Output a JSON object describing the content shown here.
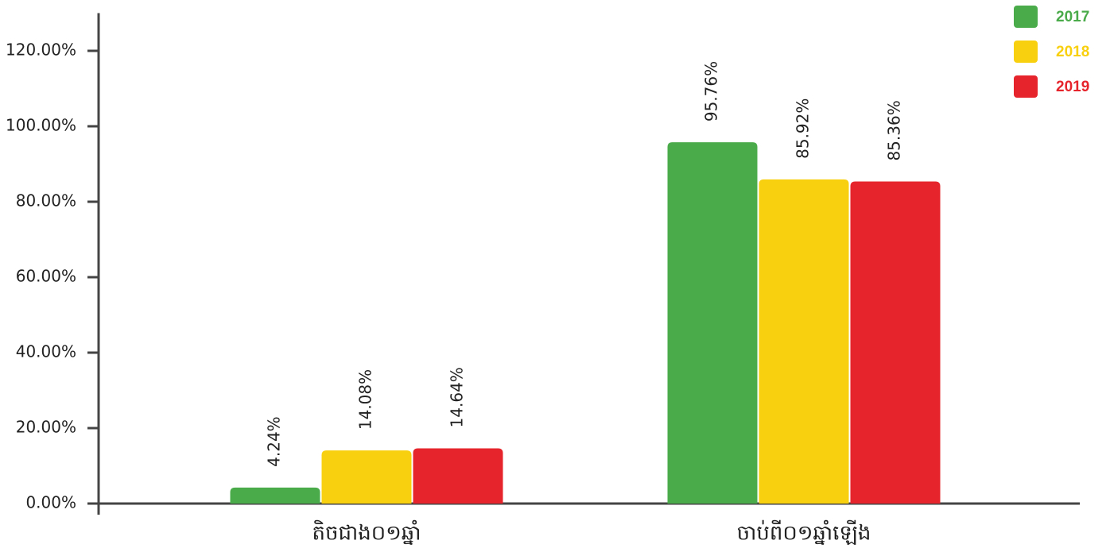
{
  "chart_data": {
    "type": "bar",
    "categories": [
      "តិចជាង០១ឆ្នាំ",
      "ចាប់ពី០១ឆ្នាំឡើង"
    ],
    "series": [
      {
        "name": "2017",
        "color": "#4aab4a",
        "values": [
          4.24,
          95.76
        ],
        "value_labels": [
          "4.24%",
          "95.76%"
        ]
      },
      {
        "name": "2018",
        "color": "#f9d00f",
        "values": [
          14.08,
          85.92
        ],
        "value_labels": [
          "14.08%",
          "85.92%"
        ]
      },
      {
        "name": "2019",
        "color": "#e5252b",
        "values": [
          14.64,
          85.36
        ],
        "value_labels": [
          "14.64%",
          "85.36%"
        ]
      }
    ],
    "ylim": [
      0,
      130
    ],
    "yticks": [
      {
        "value": 0,
        "label": "0.00%"
      },
      {
        "value": 20,
        "label": "20.00%"
      },
      {
        "value": 40,
        "label": "40.00%"
      },
      {
        "value": 60,
        "label": "60.00%"
      },
      {
        "value": 80,
        "label": "80.00%"
      },
      {
        "value": 100,
        "label": "100.00%"
      },
      {
        "value": 120,
        "label": "120.00%"
      }
    ],
    "legend": "top-right"
  }
}
